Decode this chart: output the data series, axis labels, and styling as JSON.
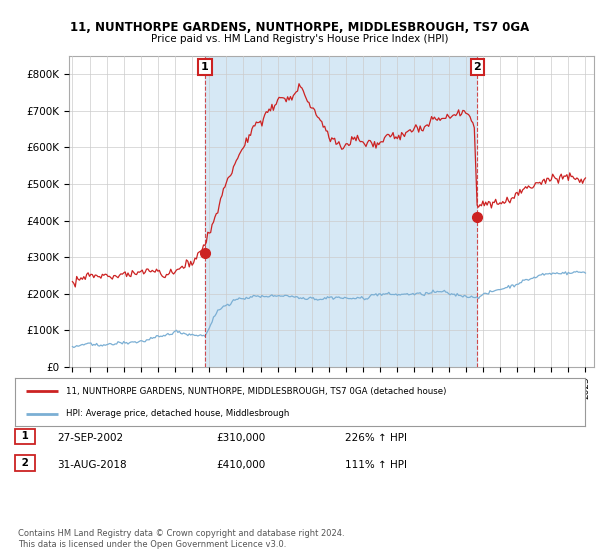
{
  "title": "11, NUNTHORPE GARDENS, NUNTHORPE, MIDDLESBROUGH, TS7 0GA",
  "subtitle": "Price paid vs. HM Land Registry's House Price Index (HPI)",
  "ylabel_ticks": [
    "£0",
    "£100K",
    "£200K",
    "£300K",
    "£400K",
    "£500K",
    "£600K",
    "£700K",
    "£800K"
  ],
  "ytick_values": [
    0,
    100000,
    200000,
    300000,
    400000,
    500000,
    600000,
    700000,
    800000
  ],
  "ylim": [
    0,
    850000
  ],
  "xlim_start": 1994.8,
  "xlim_end": 2025.5,
  "hpi_color": "#7bafd4",
  "price_color": "#cc2222",
  "shade_color": "#d6e8f5",
  "marker1_x": 2002.75,
  "marker1_y": 310000,
  "marker1_label": "1",
  "marker2_x": 2018.67,
  "marker2_y": 410000,
  "marker2_label": "2",
  "legend_line1": "11, NUNTHORPE GARDENS, NUNTHORPE, MIDDLESBROUGH, TS7 0GA (detached house)",
  "legend_line2": "HPI: Average price, detached house, Middlesbrough",
  "annot1_date": "27-SEP-2002",
  "annot1_price": "£310,000",
  "annot1_hpi": "226% ↑ HPI",
  "annot2_date": "31-AUG-2018",
  "annot2_price": "£410,000",
  "annot2_hpi": "111% ↑ HPI",
  "footer": "Contains HM Land Registry data © Crown copyright and database right 2024.\nThis data is licensed under the Open Government Licence v3.0.",
  "bg_color": "#ffffff",
  "grid_color": "#cccccc"
}
